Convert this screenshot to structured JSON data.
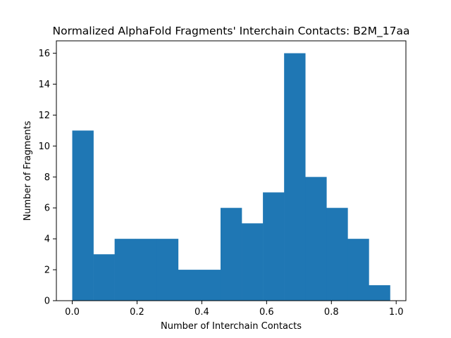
{
  "chart_data": {
    "type": "bar",
    "title": "Normalized AlphaFold Fragments' Interchain Contacts: B2M_17aa",
    "xlabel": "Number of Interchain Contacts",
    "ylabel": "Number of Fragments",
    "bin_edges": [
      0.0,
      0.0654,
      0.1308,
      0.1962,
      0.2616,
      0.327,
      0.3924,
      0.4578,
      0.5232,
      0.5886,
      0.654,
      0.7194,
      0.7848,
      0.8502,
      0.9156,
      0.981
    ],
    "values": [
      11,
      3,
      4,
      4,
      4,
      2,
      2,
      6,
      5,
      7,
      16,
      8,
      6,
      4,
      1
    ],
    "xlim": [
      -0.049,
      1.03
    ],
    "ylim": [
      0,
      16.8
    ],
    "xticks": [
      0.0,
      0.2,
      0.4,
      0.6,
      0.8,
      1.0
    ],
    "xtick_labels": [
      "0.0",
      "0.2",
      "0.4",
      "0.6",
      "0.8",
      "1.0"
    ],
    "yticks": [
      0,
      2,
      4,
      6,
      8,
      10,
      12,
      14,
      16
    ],
    "ytick_labels": [
      "0",
      "2",
      "4",
      "6",
      "8",
      "10",
      "12",
      "14",
      "16"
    ],
    "bar_color": "#1f77b4",
    "grid": false,
    "legend": "none"
  }
}
